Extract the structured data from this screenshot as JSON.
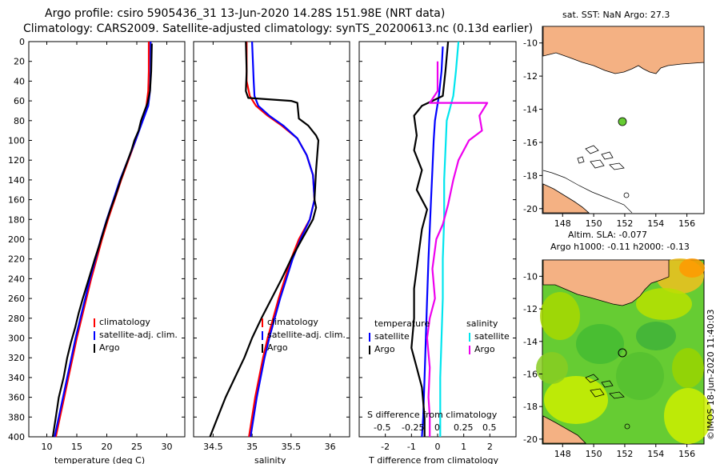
{
  "header": {
    "title_line1": "Argo profile: csiro 5905436_31 13-Jun-2020 14.28S 151.98E (NRT data)",
    "title_line2": "Climatology: CARS2009. Satellite-adjusted climatology: synTS_20200613.nc (0.13d earlier)"
  },
  "colors": {
    "climatology": "#ff0000",
    "satellite": "#0000ff",
    "argo": "#000000",
    "salinity_satellite": "#00e5ee",
    "salinity_argo": "#ee00ee",
    "land": "#f4b183",
    "argo_dot": "#66cc33"
  },
  "chart_data": [
    {
      "type": "line",
      "id": "temperature",
      "xlabel": "temperature (deg C)",
      "ylabel": "",
      "xlim": [
        7,
        33
      ],
      "ylim": [
        400,
        0
      ],
      "xticks": [
        10,
        15,
        20,
        25,
        30
      ],
      "yticks": [
        0,
        20,
        40,
        60,
        80,
        100,
        120,
        140,
        160,
        180,
        200,
        220,
        240,
        260,
        280,
        300,
        320,
        340,
        360,
        380,
        400
      ],
      "legend": [
        "climatology",
        "satellite-adj. clim.",
        "Argo"
      ],
      "series": [
        {
          "name": "climatology",
          "color": "#ff0000",
          "points": [
            [
              27.0,
              0
            ],
            [
              27.0,
              30
            ],
            [
              26.9,
              50
            ],
            [
              26.6,
              65
            ],
            [
              25.9,
              80
            ],
            [
              24.8,
              100
            ],
            [
              23.6,
              120
            ],
            [
              22.4,
              140
            ],
            [
              21.3,
              160
            ],
            [
              20.2,
              180
            ],
            [
              19.2,
              200
            ],
            [
              18.3,
              220
            ],
            [
              17.4,
              240
            ],
            [
              16.6,
              260
            ],
            [
              15.8,
              280
            ],
            [
              15.0,
              300
            ],
            [
              14.3,
              320
            ],
            [
              13.6,
              340
            ],
            [
              12.9,
              360
            ],
            [
              12.2,
              380
            ],
            [
              11.5,
              400
            ]
          ]
        },
        {
          "name": "satellite-adj. clim.",
          "color": "#0000ff",
          "points": [
            [
              27.3,
              0
            ],
            [
              27.3,
              30
            ],
            [
              27.2,
              50
            ],
            [
              26.9,
              65
            ],
            [
              26.0,
              80
            ],
            [
              24.8,
              100
            ],
            [
              23.5,
              120
            ],
            [
              22.2,
              140
            ],
            [
              21.1,
              160
            ],
            [
              20.0,
              180
            ],
            [
              19.0,
              200
            ],
            [
              18.1,
              220
            ],
            [
              17.2,
              240
            ],
            [
              16.4,
              260
            ],
            [
              15.6,
              280
            ],
            [
              14.8,
              300
            ],
            [
              14.1,
              320
            ],
            [
              13.4,
              340
            ],
            [
              12.7,
              360
            ],
            [
              12.0,
              380
            ],
            [
              11.3,
              400
            ]
          ]
        },
        {
          "name": "Argo",
          "color": "#000000",
          "points": [
            [
              27.5,
              2
            ],
            [
              27.4,
              30
            ],
            [
              27.2,
              50
            ],
            [
              26.8,
              62
            ],
            [
              26.3,
              70
            ],
            [
              25.7,
              80
            ],
            [
              25.3,
              90
            ],
            [
              24.6,
              100
            ],
            [
              24.1,
              110
            ],
            [
              23.2,
              125
            ],
            [
              22.3,
              140
            ],
            [
              21.5,
              155
            ],
            [
              20.6,
              170
            ],
            [
              19.8,
              185
            ],
            [
              18.8,
              205
            ],
            [
              18.0,
              220
            ],
            [
              17.0,
              240
            ],
            [
              16.0,
              260
            ],
            [
              15.3,
              275
            ],
            [
              14.7,
              290
            ],
            [
              14.0,
              305
            ],
            [
              13.4,
              320
            ],
            [
              12.8,
              340
            ],
            [
              12.0,
              360
            ],
            [
              11.5,
              380
            ],
            [
              11.0,
              400
            ]
          ]
        }
      ]
    },
    {
      "type": "line",
      "id": "salinity",
      "xlabel": "salinity",
      "ylabel": "",
      "xlim": [
        34.25,
        36.25
      ],
      "ylim": [
        400,
        0
      ],
      "xticks": [
        34.5,
        35,
        35.5,
        36
      ],
      "xticklabels": [
        "34.5",
        "35",
        "35.5",
        "36"
      ],
      "legend": [
        "climatology",
        "satellite-adj. clim.",
        "Argo"
      ],
      "series": [
        {
          "name": "climatology",
          "color": "#ff0000",
          "points": [
            [
              34.93,
              0
            ],
            [
              34.93,
              40
            ],
            [
              34.97,
              55
            ],
            [
              35.05,
              65
            ],
            [
              35.2,
              75
            ],
            [
              35.38,
              85
            ],
            [
              35.58,
              98
            ],
            [
              35.7,
              115
            ],
            [
              35.78,
              135
            ],
            [
              35.8,
              160
            ],
            [
              35.74,
              180
            ],
            [
              35.6,
              200
            ],
            [
              35.5,
              220
            ],
            [
              35.42,
              240
            ],
            [
              35.34,
              260
            ],
            [
              35.27,
              280
            ],
            [
              35.2,
              300
            ],
            [
              35.14,
              320
            ],
            [
              35.09,
              340
            ],
            [
              35.04,
              360
            ],
            [
              35.0,
              380
            ],
            [
              34.96,
              400
            ]
          ]
        },
        {
          "name": "satellite-adj. clim.",
          "color": "#0000ff",
          "points": [
            [
              35.0,
              0
            ],
            [
              35.02,
              40
            ],
            [
              35.03,
              55
            ],
            [
              35.08,
              65
            ],
            [
              35.22,
              75
            ],
            [
              35.4,
              85
            ],
            [
              35.58,
              98
            ],
            [
              35.7,
              115
            ],
            [
              35.78,
              135
            ],
            [
              35.8,
              160
            ],
            [
              35.74,
              180
            ],
            [
              35.62,
              200
            ],
            [
              35.52,
              220
            ],
            [
              35.44,
              240
            ],
            [
              35.36,
              260
            ],
            [
              35.29,
              280
            ],
            [
              35.22,
              300
            ],
            [
              35.16,
              320
            ],
            [
              35.11,
              340
            ],
            [
              35.06,
              360
            ],
            [
              35.02,
              380
            ],
            [
              34.98,
              400
            ]
          ]
        },
        {
          "name": "Argo",
          "color": "#000000",
          "points": [
            [
              34.92,
              0
            ],
            [
              34.93,
              30
            ],
            [
              34.92,
              50
            ],
            [
              34.95,
              57
            ],
            [
              35.5,
              60
            ],
            [
              35.58,
              62
            ],
            [
              35.6,
              78
            ],
            [
              35.72,
              85
            ],
            [
              35.82,
              95
            ],
            [
              35.85,
              100
            ],
            [
              35.84,
              110
            ],
            [
              35.82,
              130
            ],
            [
              35.81,
              145
            ],
            [
              35.8,
              160
            ],
            [
              35.82,
              168
            ],
            [
              35.78,
              180
            ],
            [
              35.64,
              200
            ],
            [
              35.5,
              220
            ],
            [
              35.38,
              240
            ],
            [
              35.25,
              260
            ],
            [
              35.12,
              280
            ],
            [
              35.0,
              300
            ],
            [
              34.9,
              320
            ],
            [
              34.78,
              340
            ],
            [
              34.66,
              360
            ],
            [
              34.56,
              380
            ],
            [
              34.46,
              400
            ]
          ]
        }
      ]
    },
    {
      "type": "line",
      "id": "differences",
      "xlabel": "T difference from climatology",
      "xlim": [
        -3,
        3
      ],
      "ylim": [
        400,
        0
      ],
      "xticks": [
        -2,
        -1,
        0,
        1,
        2
      ],
      "xticklabels": [
        "-2",
        "-1",
        "0",
        "1",
        "2"
      ],
      "top_axis_label": "S difference from climatology",
      "top_axis_ticks": [
        "-0.5",
        "-0.25",
        "0",
        "0.25",
        "0.5"
      ],
      "legend_left_title": "temperature",
      "legend_right_title": "salinity",
      "legend": [
        "satellite",
        "Argo",
        "satellite",
        "Argo"
      ],
      "series": [
        {
          "name": "T satellite",
          "color": "#0000ff",
          "points": [
            [
              0.2,
              5
            ],
            [
              0.15,
              30
            ],
            [
              0.05,
              55
            ],
            [
              -0.1,
              80
            ],
            [
              -0.15,
              100
            ],
            [
              -0.2,
              130
            ],
            [
              -0.25,
              160
            ],
            [
              -0.3,
              190
            ],
            [
              -0.35,
              220
            ],
            [
              -0.4,
              260
            ],
            [
              -0.45,
              300
            ],
            [
              -0.5,
              340
            ],
            [
              -0.55,
              380
            ],
            [
              -0.6,
              400
            ]
          ]
        },
        {
          "name": "T Argo",
          "color": "#000000",
          "points": [
            [
              0.4,
              0
            ],
            [
              0.3,
              30
            ],
            [
              0.2,
              55
            ],
            [
              -0.6,
              65
            ],
            [
              -0.9,
              75
            ],
            [
              -0.8,
              95
            ],
            [
              -0.9,
              110
            ],
            [
              -0.6,
              130
            ],
            [
              -0.8,
              150
            ],
            [
              -0.4,
              170
            ],
            [
              -0.6,
              190
            ],
            [
              -0.7,
              210
            ],
            [
              -0.8,
              230
            ],
            [
              -0.9,
              250
            ],
            [
              -0.9,
              280
            ],
            [
              -1.0,
              310
            ],
            [
              -0.8,
              330
            ],
            [
              -0.6,
              350
            ],
            [
              -0.5,
              380
            ],
            [
              -0.5,
              400
            ]
          ]
        },
        {
          "name": "S satellite",
          "color": "#00e5ee",
          "points": [
            [
              0.8,
              0
            ],
            [
              0.7,
              30
            ],
            [
              0.6,
              55
            ],
            [
              0.35,
              80
            ],
            [
              0.3,
              110
            ],
            [
              0.25,
              140
            ],
            [
              0.25,
              180
            ],
            [
              0.2,
              220
            ],
            [
              0.2,
              260
            ],
            [
              0.15,
              300
            ],
            [
              0.1,
              340
            ],
            [
              0.1,
              380
            ],
            [
              0.1,
              400
            ]
          ]
        },
        {
          "name": "S Argo",
          "color": "#ee00ee",
          "points": [
            [
              0.0,
              20
            ],
            [
              0.0,
              50
            ],
            [
              -0.3,
              62
            ],
            [
              1.9,
              62
            ],
            [
              1.6,
              75
            ],
            [
              1.7,
              90
            ],
            [
              1.2,
              100
            ],
            [
              0.8,
              120
            ],
            [
              0.6,
              140
            ],
            [
              0.4,
              165
            ],
            [
              0.2,
              185
            ],
            [
              -0.05,
              200
            ],
            [
              -0.2,
              230
            ],
            [
              -0.1,
              260
            ],
            [
              -0.3,
              280
            ],
            [
              -0.4,
              300
            ],
            [
              -0.3,
              330
            ],
            [
              -0.35,
              360
            ],
            [
              -0.3,
              380
            ],
            [
              -0.3,
              400
            ]
          ]
        }
      ]
    }
  ],
  "maps": {
    "sst": {
      "title": "sat. SST: NaN Argo: 27.3",
      "lat_ticks": [
        "-10",
        "-12",
        "-14",
        "-16",
        "-18",
        "-20"
      ],
      "lon_ticks": [
        "148",
        "150",
        "152",
        "154",
        "156"
      ],
      "argo_lon": 151.98,
      "argo_lat": -14.28
    },
    "sla": {
      "title_line1": "Altim. SLA: -0.077",
      "title_line2": "Argo h1000: -0.11 h2000: -0.13",
      "lat_ticks": [
        "-10",
        "-12",
        "-14",
        "-16",
        "-18",
        "-20"
      ],
      "lon_ticks": [
        "148",
        "150",
        "152",
        "154",
        "156"
      ],
      "argo_lon": 151.98,
      "argo_lat": -14.28
    }
  },
  "footer": {
    "credit": "©IMOS 18-Jun-2020 11:40:03"
  }
}
